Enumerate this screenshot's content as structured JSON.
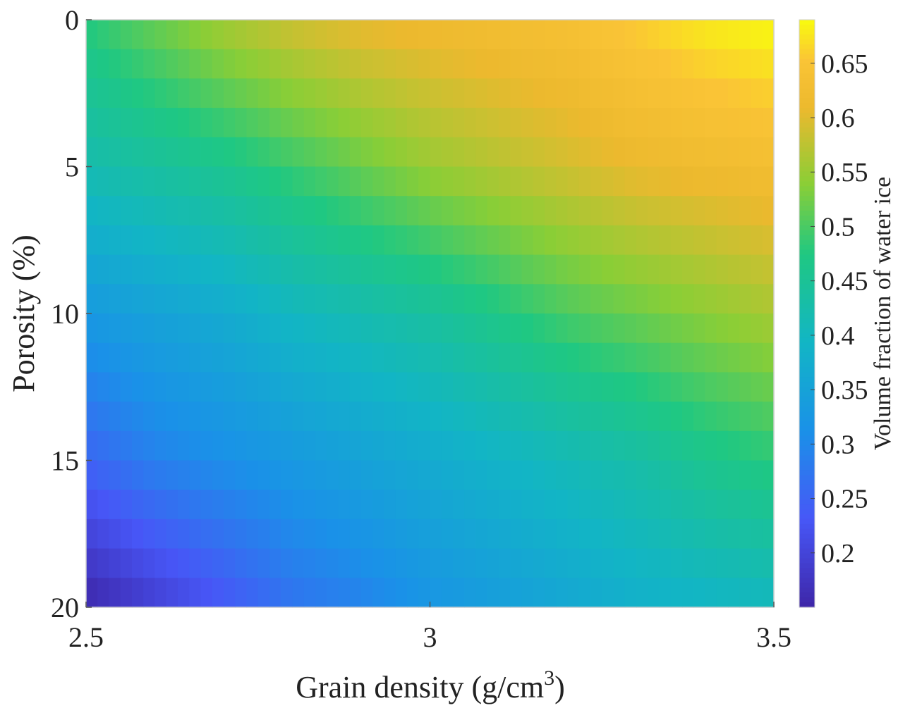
{
  "chart_data": {
    "type": "heatmap",
    "title": "",
    "xlabel": "Grain density (g/cm",
    "xlabel_superscript": "3",
    "xlabel_suffix": ")",
    "ylabel": "Porosity (%)",
    "colorbar_label": "Volume fraction of water ice",
    "xlim": [
      2.5,
      3.5
    ],
    "ylim": [
      0,
      20
    ],
    "y_reversed": true,
    "x_ticks": [
      "2.5",
      "3",
      "3.5"
    ],
    "y_ticks": [
      "0",
      "5",
      "10",
      "15",
      "20"
    ],
    "colorbar_ticks": [
      "0.2",
      "0.25",
      "0.3",
      "0.35",
      "0.4",
      "0.45",
      "0.5",
      "0.55",
      "0.6",
      "0.65"
    ],
    "colorbar_range": [
      0.15,
      0.69
    ],
    "colormap": "parula",
    "grid": false,
    "x": [
      2.5,
      2.6,
      2.7,
      2.8,
      2.9,
      3.0,
      3.1,
      3.2,
      3.3,
      3.4,
      3.5
    ],
    "y": [
      0,
      5,
      10,
      15,
      20
    ],
    "z": [
      [
        0.48,
        0.52,
        0.56,
        0.59,
        0.61,
        0.62,
        0.63,
        0.64,
        0.66,
        0.68,
        0.69
      ],
      [
        0.42,
        0.44,
        0.46,
        0.49,
        0.52,
        0.55,
        0.57,
        0.59,
        0.61,
        0.62,
        0.63
      ],
      [
        0.33,
        0.35,
        0.37,
        0.4,
        0.42,
        0.44,
        0.47,
        0.5,
        0.52,
        0.54,
        0.56
      ],
      [
        0.25,
        0.29,
        0.31,
        0.33,
        0.35,
        0.37,
        0.39,
        0.41,
        0.43,
        0.46,
        0.48
      ],
      [
        0.15,
        0.19,
        0.23,
        0.27,
        0.29,
        0.32,
        0.34,
        0.36,
        0.38,
        0.39,
        0.4
      ]
    ]
  }
}
